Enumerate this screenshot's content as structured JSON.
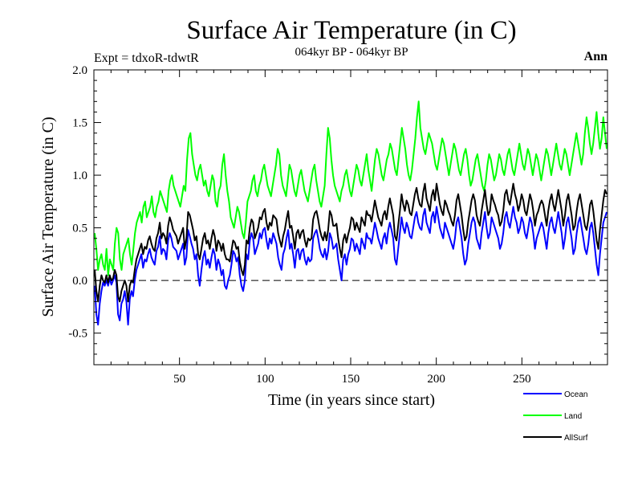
{
  "chart_data": {
    "type": "line",
    "title": "Surface Air Temperature (in C)",
    "subtitle": "064kyr BP - 064kyr BP",
    "left_note": "Expt = tdxoR-tdwtR",
    "right_note": "Ann",
    "xlabel": "Time (in years since start)",
    "ylabel": "Surface Air Temperature (in C)",
    "xlim": [
      0,
      300
    ],
    "ylim": [
      -0.8,
      2.0
    ],
    "xticks": [
      50,
      100,
      150,
      200,
      250
    ],
    "yticks": [
      -0.5,
      0.0,
      0.5,
      1.0,
      1.5,
      2.0
    ],
    "ytick_labels": [
      "-0.5",
      "0.0",
      "0.5",
      "1.0",
      "1.5",
      "2.0"
    ],
    "zero_line": true,
    "grid": false,
    "legend_position": "bottom-right",
    "series": [
      {
        "name": "Ocean",
        "color": "#0000ff",
        "values": [
          -0.05,
          -0.32,
          -0.42,
          -0.22,
          -0.1,
          -0.02,
          -0.05,
          0.0,
          -0.05,
          0.02,
          -0.04,
          0.0,
          0.05,
          -0.02,
          -0.32,
          -0.38,
          -0.22,
          -0.18,
          -0.1,
          -0.2,
          -0.42,
          -0.18,
          -0.1,
          -0.15,
          0.0,
          0.1,
          0.15,
          0.2,
          0.25,
          0.12,
          0.2,
          0.18,
          0.25,
          0.3,
          0.22,
          0.18,
          0.15,
          0.28,
          0.32,
          0.42,
          0.25,
          0.3,
          0.28,
          0.2,
          0.38,
          0.45,
          0.4,
          0.32,
          0.3,
          0.28,
          0.2,
          0.25,
          0.3,
          0.35,
          0.15,
          0.22,
          0.48,
          0.42,
          0.35,
          0.3,
          0.2,
          0.25,
          0.05,
          -0.05,
          0.1,
          0.22,
          0.28,
          0.15,
          0.2,
          0.12,
          0.22,
          0.3,
          0.25,
          0.1,
          0.2,
          0.15,
          0.05,
          0.1,
          -0.05,
          -0.08,
          0.0,
          0.05,
          0.15,
          0.28,
          0.25,
          0.18,
          0.22,
          0.05,
          -0.05,
          -0.1,
          0.0,
          0.25,
          0.2,
          0.38,
          0.45,
          0.4,
          0.25,
          0.3,
          0.35,
          0.45,
          0.4,
          0.48,
          0.5,
          0.38,
          0.3,
          0.4,
          0.35,
          0.45,
          0.4,
          0.35,
          0.22,
          0.15,
          0.1,
          0.25,
          0.3,
          0.4,
          0.48,
          0.3,
          0.35,
          0.25,
          0.12,
          0.28,
          0.3,
          0.2,
          0.28,
          0.3,
          0.2,
          0.15,
          0.22,
          0.18,
          0.2,
          0.4,
          0.45,
          0.48,
          0.4,
          0.3,
          0.25,
          0.22,
          0.3,
          0.2,
          0.28,
          0.45,
          0.4,
          0.3,
          0.32,
          0.35,
          0.2,
          0.1,
          0.0,
          0.2,
          0.25,
          0.15,
          0.25,
          0.3,
          0.4,
          0.38,
          0.28,
          0.35,
          0.3,
          0.25,
          0.4,
          0.35,
          0.3,
          0.45,
          0.4,
          0.4,
          0.35,
          0.45,
          0.55,
          0.48,
          0.4,
          0.35,
          0.3,
          0.4,
          0.45,
          0.35,
          0.48,
          0.55,
          0.48,
          0.4,
          0.2,
          0.15,
          0.3,
          0.45,
          0.6,
          0.5,
          0.45,
          0.55,
          0.5,
          0.42,
          0.4,
          0.5,
          0.6,
          0.65,
          0.55,
          0.5,
          0.48,
          0.62,
          0.68,
          0.55,
          0.5,
          0.45,
          0.6,
          0.65,
          0.55,
          0.7,
          0.6,
          0.5,
          0.45,
          0.4,
          0.55,
          0.5,
          0.45,
          0.4,
          0.35,
          0.3,
          0.4,
          0.55,
          0.6,
          0.5,
          0.4,
          0.25,
          0.15,
          0.2,
          0.35,
          0.45,
          0.55,
          0.6,
          0.55,
          0.4,
          0.35,
          0.3,
          0.45,
          0.55,
          0.65,
          0.5,
          0.4,
          0.45,
          0.6,
          0.55,
          0.5,
          0.45,
          0.4,
          0.3,
          0.35,
          0.45,
          0.6,
          0.65,
          0.55,
          0.5,
          0.6,
          0.7,
          0.6,
          0.55,
          0.45,
          0.5,
          0.6,
          0.55,
          0.45,
          0.4,
          0.5,
          0.6,
          0.55,
          0.45,
          0.3,
          0.4,
          0.45,
          0.5,
          0.55,
          0.5,
          0.4,
          0.3,
          0.45,
          0.55,
          0.6,
          0.5,
          0.45,
          0.55,
          0.65,
          0.55,
          0.45,
          0.3,
          0.4,
          0.55,
          0.6,
          0.5,
          0.4,
          0.25,
          0.3,
          0.45,
          0.55,
          0.6,
          0.5,
          0.4,
          0.3,
          0.25,
          0.35,
          0.5,
          0.55,
          0.45,
          0.3,
          0.15,
          0.05,
          0.25,
          0.4,
          0.55,
          0.6,
          0.65
        ]
      },
      {
        "name": "Land",
        "color": "#00ff00",
        "values": [
          0.45,
          0.3,
          0.1,
          0.2,
          0.25,
          0.15,
          0.1,
          0.3,
          0.05,
          0.2,
          0.15,
          0.1,
          0.35,
          0.5,
          0.45,
          0.2,
          0.1,
          0.25,
          0.3,
          0.35,
          0.4,
          0.25,
          0.15,
          0.3,
          0.45,
          0.55,
          0.6,
          0.65,
          0.55,
          0.7,
          0.75,
          0.6,
          0.65,
          0.7,
          0.8,
          0.65,
          0.6,
          0.7,
          0.75,
          0.85,
          0.8,
          0.75,
          0.7,
          0.65,
          0.85,
          0.95,
          1.0,
          0.9,
          0.85,
          0.8,
          0.75,
          0.7,
          0.8,
          0.9,
          0.85,
          1.15,
          1.35,
          1.4,
          1.2,
          1.1,
          1.0,
          0.95,
          1.05,
          1.1,
          1.0,
          0.9,
          0.95,
          0.85,
          0.8,
          0.9,
          1.0,
          0.95,
          0.75,
          0.7,
          0.85,
          0.9,
          1.1,
          1.2,
          1.0,
          0.85,
          0.75,
          0.6,
          0.55,
          0.5,
          0.6,
          0.7,
          0.65,
          0.55,
          0.45,
          0.4,
          0.55,
          0.75,
          0.8,
          0.85,
          0.95,
          1.0,
          0.85,
          0.8,
          0.9,
          0.95,
          1.05,
          1.1,
          1.0,
          0.9,
          0.85,
          0.8,
          0.9,
          1.0,
          1.1,
          1.25,
          1.2,
          1.0,
          0.9,
          0.85,
          0.8,
          0.95,
          1.1,
          1.05,
          0.95,
          0.85,
          0.8,
          0.9,
          1.0,
          1.05,
          0.95,
          0.85,
          0.8,
          0.75,
          0.85,
          0.95,
          1.05,
          1.1,
          0.95,
          0.85,
          0.75,
          0.7,
          0.8,
          0.9,
          1.2,
          1.45,
          1.35,
          1.15,
          1.0,
          0.9,
          0.85,
          0.8,
          0.75,
          0.85,
          0.9,
          1.0,
          1.05,
          0.95,
          0.85,
          0.8,
          0.9,
          1.0,
          1.1,
          1.05,
          0.95,
          0.9,
          1.0,
          1.1,
          1.2,
          1.05,
          0.95,
          0.85,
          1.0,
          1.15,
          1.25,
          1.2,
          1.1,
          1.0,
          0.95,
          1.05,
          1.15,
          1.2,
          1.3,
          1.25,
          1.15,
          1.05,
          1.0,
          1.15,
          1.3,
          1.45,
          1.35,
          1.25,
          1.1,
          1.0,
          0.95,
          1.05,
          1.2,
          1.35,
          1.55,
          1.7,
          1.45,
          1.35,
          1.25,
          1.2,
          1.3,
          1.4,
          1.35,
          1.3,
          1.2,
          1.1,
          1.05,
          1.15,
          1.25,
          1.35,
          1.3,
          1.2,
          1.1,
          1.0,
          1.1,
          1.2,
          1.3,
          1.25,
          1.15,
          1.05,
          1.0,
          1.1,
          1.2,
          1.25,
          1.15,
          1.0,
          0.9,
          0.95,
          1.05,
          1.15,
          1.2,
          1.1,
          1.0,
          0.9,
          0.85,
          0.95,
          1.1,
          1.2,
          1.15,
          1.05,
          0.95,
          1.0,
          1.1,
          1.2,
          1.15,
          1.05,
          1.0,
          1.1,
          1.2,
          1.25,
          1.15,
          1.05,
          1.0,
          1.1,
          1.2,
          1.3,
          1.2,
          1.1,
          1.05,
          1.15,
          1.25,
          1.2,
          1.1,
          1.0,
          1.1,
          1.2,
          1.15,
          1.05,
          0.95,
          1.05,
          1.15,
          1.25,
          1.2,
          1.1,
          1.0,
          1.1,
          1.2,
          1.3,
          1.2,
          1.1,
          1.05,
          1.15,
          1.25,
          1.2,
          1.1,
          1.0,
          1.1,
          1.2,
          1.3,
          1.4,
          1.3,
          1.2,
          1.1,
          1.2,
          1.4,
          1.55,
          1.45,
          1.3,
          1.2,
          1.3,
          1.45,
          1.6,
          1.4,
          1.25,
          1.35,
          1.55,
          1.4,
          1.25
        ]
      },
      {
        "name": "AllSurf",
        "color": "#000000",
        "values": [
          0.1,
          -0.1,
          -0.2,
          -0.05,
          0.05,
          0.0,
          -0.02,
          0.05,
          -0.02,
          0.05,
          0.0,
          0.02,
          0.1,
          0.05,
          -0.15,
          -0.2,
          -0.1,
          -0.05,
          0.0,
          -0.05,
          -0.2,
          -0.05,
          0.0,
          -0.02,
          0.1,
          0.2,
          0.25,
          0.3,
          0.35,
          0.25,
          0.32,
          0.3,
          0.38,
          0.42,
          0.35,
          0.3,
          0.28,
          0.4,
          0.45,
          0.55,
          0.4,
          0.45,
          0.42,
          0.35,
          0.52,
          0.6,
          0.55,
          0.48,
          0.45,
          0.42,
          0.35,
          0.4,
          0.45,
          0.5,
          0.3,
          0.4,
          0.65,
          0.62,
          0.55,
          0.48,
          0.38,
          0.42,
          0.25,
          0.2,
          0.3,
          0.4,
          0.45,
          0.35,
          0.38,
          0.3,
          0.4,
          0.48,
          0.42,
          0.28,
          0.38,
          0.35,
          0.28,
          0.35,
          0.25,
          0.2,
          0.2,
          0.18,
          0.28,
          0.38,
          0.36,
          0.3,
          0.32,
          0.18,
          0.1,
          0.05,
          0.15,
          0.38,
          0.35,
          0.5,
          0.58,
          0.55,
          0.4,
          0.45,
          0.5,
          0.6,
          0.58,
          0.65,
          0.68,
          0.55,
          0.48,
          0.55,
          0.52,
          0.62,
          0.6,
          0.58,
          0.45,
          0.38,
          0.32,
          0.42,
          0.48,
          0.58,
          0.66,
          0.5,
          0.52,
          0.42,
          0.3,
          0.45,
          0.48,
          0.4,
          0.46,
          0.48,
          0.38,
          0.32,
          0.4,
          0.38,
          0.4,
          0.58,
          0.64,
          0.66,
          0.58,
          0.48,
          0.42,
          0.38,
          0.46,
          0.38,
          0.48,
          0.66,
          0.62,
          0.52,
          0.52,
          0.54,
          0.4,
          0.3,
          0.22,
          0.38,
          0.44,
          0.36,
          0.44,
          0.5,
          0.6,
          0.58,
          0.48,
          0.55,
          0.5,
          0.46,
          0.6,
          0.56,
          0.52,
          0.66,
          0.62,
          0.62,
          0.56,
          0.66,
          0.76,
          0.68,
          0.6,
          0.56,
          0.52,
          0.62,
          0.66,
          0.58,
          0.7,
          0.78,
          0.7,
          0.62,
          0.42,
          0.38,
          0.52,
          0.66,
          0.82,
          0.72,
          0.66,
          0.76,
          0.72,
          0.64,
          0.62,
          0.72,
          0.82,
          0.88,
          0.78,
          0.72,
          0.7,
          0.84,
          0.92,
          0.78,
          0.72,
          0.66,
          0.8,
          0.86,
          0.76,
          0.92,
          0.82,
          0.72,
          0.66,
          0.62,
          0.76,
          0.72,
          0.66,
          0.62,
          0.56,
          0.52,
          0.62,
          0.76,
          0.82,
          0.72,
          0.62,
          0.48,
          0.38,
          0.42,
          0.56,
          0.66,
          0.76,
          0.82,
          0.76,
          0.62,
          0.56,
          0.52,
          0.66,
          0.76,
          0.86,
          0.72,
          0.62,
          0.66,
          0.82,
          0.76,
          0.72,
          0.66,
          0.62,
          0.52,
          0.56,
          0.66,
          0.82,
          0.86,
          0.76,
          0.72,
          0.82,
          0.92,
          0.82,
          0.76,
          0.66,
          0.72,
          0.82,
          0.76,
          0.66,
          0.62,
          0.72,
          0.82,
          0.76,
          0.66,
          0.52,
          0.62,
          0.66,
          0.72,
          0.76,
          0.72,
          0.62,
          0.52,
          0.66,
          0.76,
          0.82,
          0.72,
          0.66,
          0.76,
          0.86,
          0.76,
          0.66,
          0.52,
          0.62,
          0.76,
          0.82,
          0.72,
          0.62,
          0.48,
          0.52,
          0.66,
          0.76,
          0.82,
          0.72,
          0.62,
          0.52,
          0.48,
          0.58,
          0.72,
          0.76,
          0.66,
          0.52,
          0.38,
          0.3,
          0.48,
          0.62,
          0.76,
          0.86,
          0.82
        ]
      }
    ]
  }
}
